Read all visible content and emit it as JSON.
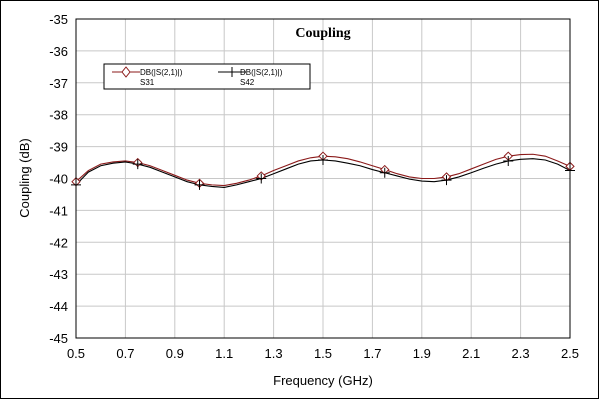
{
  "chart_data": {
    "type": "line",
    "title": "Coupling",
    "xlabel": "Frequency (GHz)",
    "ylabel": "Coupling (dB)",
    "xlim": [
      0.5,
      2.5
    ],
    "ylim": [
      -45,
      -35
    ],
    "xticks": [
      "0.5",
      "0.7",
      "0.9",
      "1.1",
      "1.3",
      "1.5",
      "1.7",
      "1.9",
      "2.1",
      "2.3",
      "2.5"
    ],
    "yticks": [
      "-35",
      "-36",
      "-37",
      "-38",
      "-39",
      "-40",
      "-41",
      "-42",
      "-43",
      "-44",
      "-45"
    ],
    "grid": true,
    "legend_position": "top-left",
    "series": [
      {
        "name": "DB(|S(2,1)|)",
        "sublabel": "S31",
        "color": "#8b1a1a",
        "marker": "diamond",
        "marker_x": [
          0.5,
          0.75,
          1.0,
          1.25,
          1.5,
          1.75,
          2.0,
          2.25,
          2.5
        ],
        "x": [
          0.5,
          0.55,
          0.6,
          0.65,
          0.7,
          0.75,
          0.8,
          0.85,
          0.9,
          0.95,
          1.0,
          1.05,
          1.1,
          1.15,
          1.2,
          1.25,
          1.3,
          1.35,
          1.4,
          1.45,
          1.5,
          1.55,
          1.6,
          1.65,
          1.7,
          1.75,
          1.8,
          1.85,
          1.9,
          1.95,
          2.0,
          2.05,
          2.1,
          2.15,
          2.2,
          2.25,
          2.3,
          2.35,
          2.4,
          2.45,
          2.5
        ],
        "values": [
          -40.1,
          -39.75,
          -39.55,
          -39.48,
          -39.45,
          -39.5,
          -39.6,
          -39.75,
          -39.9,
          -40.05,
          -40.15,
          -40.2,
          -40.22,
          -40.15,
          -40.05,
          -39.92,
          -39.75,
          -39.6,
          -39.45,
          -39.35,
          -39.3,
          -39.32,
          -39.38,
          -39.48,
          -39.6,
          -39.72,
          -39.85,
          -39.95,
          -40.0,
          -40.0,
          -39.95,
          -39.85,
          -39.7,
          -39.55,
          -39.4,
          -39.3,
          -39.25,
          -39.24,
          -39.3,
          -39.45,
          -39.62
        ]
      },
      {
        "name": "DB(|S(2,1)|)",
        "sublabel": "S42",
        "color": "#000000",
        "marker": "plus",
        "marker_x": [
          0.5,
          0.75,
          1.0,
          1.25,
          1.5,
          1.75,
          2.0,
          2.25,
          2.5
        ],
        "x": [
          0.5,
          0.55,
          0.6,
          0.65,
          0.7,
          0.75,
          0.8,
          0.85,
          0.9,
          0.95,
          1.0,
          1.05,
          1.1,
          1.15,
          1.2,
          1.25,
          1.3,
          1.35,
          1.4,
          1.45,
          1.5,
          1.55,
          1.6,
          1.65,
          1.7,
          1.75,
          1.8,
          1.85,
          1.9,
          1.95,
          2.0,
          2.05,
          2.1,
          2.15,
          2.2,
          2.25,
          2.3,
          2.35,
          2.4,
          2.45,
          2.5
        ],
        "values": [
          -40.2,
          -39.8,
          -39.6,
          -39.52,
          -39.48,
          -39.55,
          -39.65,
          -39.8,
          -39.95,
          -40.1,
          -40.2,
          -40.25,
          -40.28,
          -40.2,
          -40.1,
          -40.0,
          -39.85,
          -39.7,
          -39.55,
          -39.45,
          -39.42,
          -39.45,
          -39.52,
          -39.6,
          -39.72,
          -39.82,
          -39.92,
          -40.02,
          -40.08,
          -40.1,
          -40.05,
          -39.95,
          -39.82,
          -39.68,
          -39.55,
          -39.45,
          -39.4,
          -39.38,
          -39.42,
          -39.55,
          -39.75
        ]
      }
    ]
  }
}
